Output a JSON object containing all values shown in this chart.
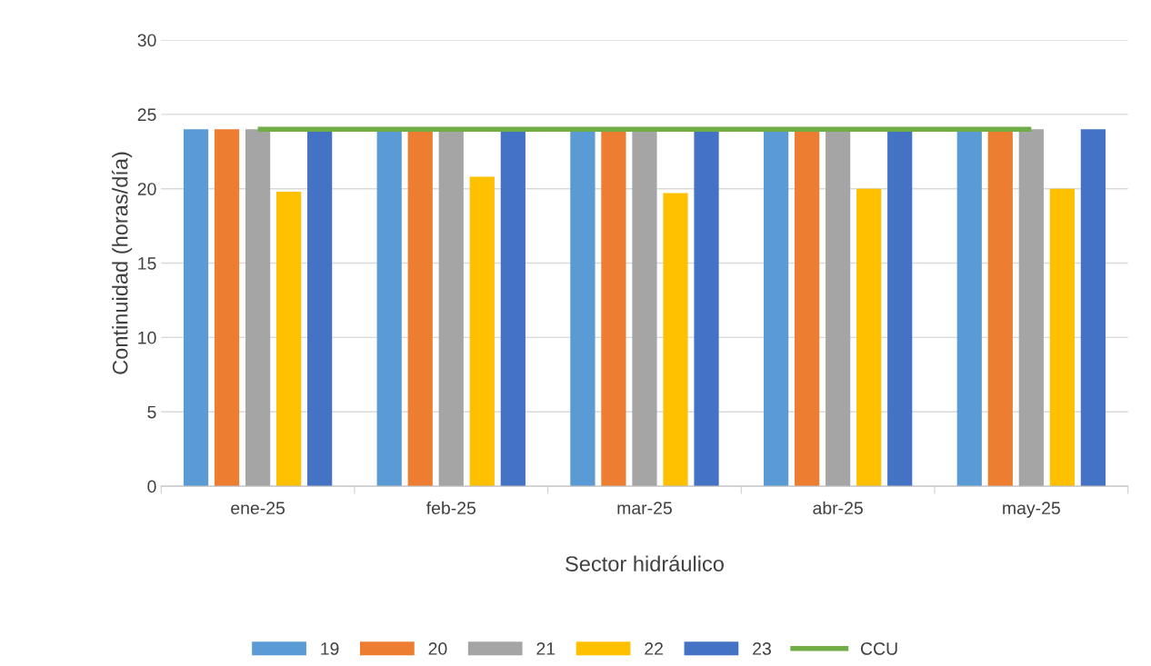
{
  "chart_data": {
    "type": "bar",
    "xlabel": "Sector hidráulico",
    "ylabel": "Continuidad (horas/día)",
    "categories": [
      "ene-25",
      "feb-25",
      "mar-25",
      "abr-25",
      "may-25"
    ],
    "series": [
      {
        "name": "19",
        "color": "#5b9bd5",
        "values": [
          24,
          24,
          24,
          24,
          24
        ]
      },
      {
        "name": "20",
        "color": "#ed7d31",
        "values": [
          24,
          24,
          24,
          24,
          24
        ]
      },
      {
        "name": "21",
        "color": "#a5a5a5",
        "values": [
          24,
          24,
          24,
          24,
          24
        ]
      },
      {
        "name": "22",
        "color": "#ffc000",
        "values": [
          19.8,
          20.8,
          19.7,
          20,
          20
        ]
      },
      {
        "name": "23",
        "color": "#4472c4",
        "values": [
          24,
          24,
          24,
          24,
          24
        ]
      },
      {
        "name": "CCU",
        "type": "line",
        "color": "#70ad47",
        "values": [
          24,
          24,
          24,
          24,
          24
        ]
      }
    ],
    "ylim": [
      0,
      30
    ],
    "yticks": [
      0,
      5,
      10,
      15,
      20,
      25,
      30
    ],
    "grid": "y",
    "legend": "bottom"
  }
}
